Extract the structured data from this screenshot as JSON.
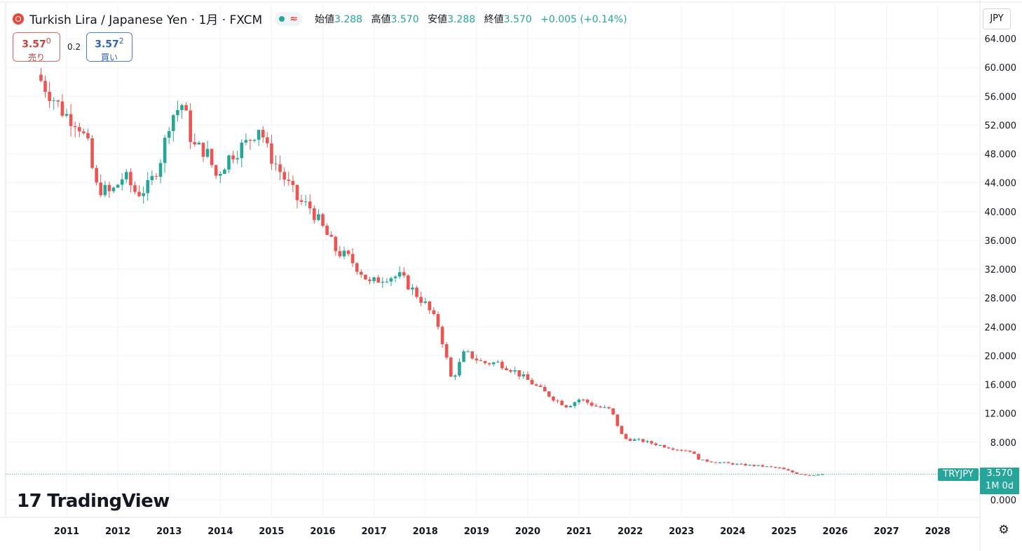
{
  "header": {
    "title": "Turkish Lira / Japanese Yen · 1月 · FXCM",
    "status_icon": "wave-icon",
    "ohlc": [
      {
        "label": "始値",
        "value": "3.288"
      },
      {
        "label": "高値",
        "value": "3.570"
      },
      {
        "label": "安値",
        "value": "3.288"
      },
      {
        "label": "終値",
        "value": "3.570"
      }
    ],
    "change": "+0.005 (+0.14%)"
  },
  "trade": {
    "sell_price_main": "3.57",
    "sell_price_sup": "0",
    "sell_label": "売り",
    "spread": "0.2",
    "buy_price_main": "3.57",
    "buy_price_sup": "2",
    "buy_label": "買い"
  },
  "currency_button": "JPY",
  "watermark": "TradingView",
  "last_price": {
    "ticker": "TRYJPY",
    "price": "3.570",
    "countdown": "1M 0d"
  },
  "colors": {
    "up": "#26a69a",
    "down": "#ef5350",
    "grid": "#f0f3fa",
    "axis": "#e0e3eb"
  },
  "chart_data": {
    "type": "candlestick",
    "interval": "1M",
    "x_ticks": [
      "2011",
      "2012",
      "2013",
      "2014",
      "2015",
      "2016",
      "2017",
      "2018",
      "2019",
      "2020",
      "2021",
      "2022",
      "2023",
      "2024",
      "2025",
      "2026",
      "2027",
      "2028"
    ],
    "y_ticks": [
      "0.000",
      "4.000",
      "8.000",
      "12.000",
      "16.000",
      "20.000",
      "24.000",
      "28.000",
      "32.000",
      "36.000",
      "40.000",
      "44.000",
      "48.000",
      "52.000",
      "56.000",
      "60.000",
      "64.000"
    ],
    "ylim": [
      0,
      66
    ],
    "keyframes": [
      {
        "year": 2010.5,
        "price": 59.0
      },
      {
        "year": 2010.8,
        "price": 56.0
      },
      {
        "year": 2011.05,
        "price": 53.5
      },
      {
        "year": 2011.3,
        "price": 52.5
      },
      {
        "year": 2011.5,
        "price": 49.0
      },
      {
        "year": 2011.65,
        "price": 43.5
      },
      {
        "year": 2011.95,
        "price": 42.5
      },
      {
        "year": 2012.2,
        "price": 45.0
      },
      {
        "year": 2012.45,
        "price": 42.5
      },
      {
        "year": 2012.7,
        "price": 43.5
      },
      {
        "year": 2012.95,
        "price": 48.0
      },
      {
        "year": 2013.1,
        "price": 53.0
      },
      {
        "year": 2013.35,
        "price": 55.0
      },
      {
        "year": 2013.55,
        "price": 49.0
      },
      {
        "year": 2013.8,
        "price": 48.5
      },
      {
        "year": 2014.0,
        "price": 45.0
      },
      {
        "year": 2014.3,
        "price": 48.0
      },
      {
        "year": 2014.6,
        "price": 49.5
      },
      {
        "year": 2014.85,
        "price": 52.0
      },
      {
        "year": 2015.0,
        "price": 48.5
      },
      {
        "year": 2015.3,
        "price": 45.0
      },
      {
        "year": 2015.6,
        "price": 41.5
      },
      {
        "year": 2015.85,
        "price": 40.5
      },
      {
        "year": 2016.1,
        "price": 37.5
      },
      {
        "year": 2016.35,
        "price": 34.5
      },
      {
        "year": 2016.6,
        "price": 33.5
      },
      {
        "year": 2016.85,
        "price": 31.5
      },
      {
        "year": 2017.0,
        "price": 30.0
      },
      {
        "year": 2017.3,
        "price": 31.0
      },
      {
        "year": 2017.6,
        "price": 31.0
      },
      {
        "year": 2017.85,
        "price": 29.0
      },
      {
        "year": 2018.1,
        "price": 27.0
      },
      {
        "year": 2018.35,
        "price": 24.0
      },
      {
        "year": 2018.6,
        "price": 16.5
      },
      {
        "year": 2018.85,
        "price": 20.5
      },
      {
        "year": 2019.2,
        "price": 19.0
      },
      {
        "year": 2019.5,
        "price": 19.0
      },
      {
        "year": 2019.8,
        "price": 18.0
      },
      {
        "year": 2020.0,
        "price": 17.0
      },
      {
        "year": 2020.3,
        "price": 15.5
      },
      {
        "year": 2020.6,
        "price": 14.0
      },
      {
        "year": 2020.85,
        "price": 13.0
      },
      {
        "year": 2021.1,
        "price": 14.0
      },
      {
        "year": 2021.4,
        "price": 13.0
      },
      {
        "year": 2021.7,
        "price": 12.5
      },
      {
        "year": 2021.95,
        "price": 8.5
      },
      {
        "year": 2022.3,
        "price": 8.2
      },
      {
        "year": 2022.7,
        "price": 7.5
      },
      {
        "year": 2023.0,
        "price": 7.0
      },
      {
        "year": 2023.25,
        "price": 6.8
      },
      {
        "year": 2023.45,
        "price": 5.5
      },
      {
        "year": 2023.8,
        "price": 5.2
      },
      {
        "year": 2024.2,
        "price": 4.9
      },
      {
        "year": 2024.6,
        "price": 4.7
      },
      {
        "year": 2025.0,
        "price": 4.4
      },
      {
        "year": 2025.3,
        "price": 3.7
      },
      {
        "year": 2025.6,
        "price": 3.4
      },
      {
        "year": 2025.75,
        "price": 3.57
      }
    ]
  }
}
